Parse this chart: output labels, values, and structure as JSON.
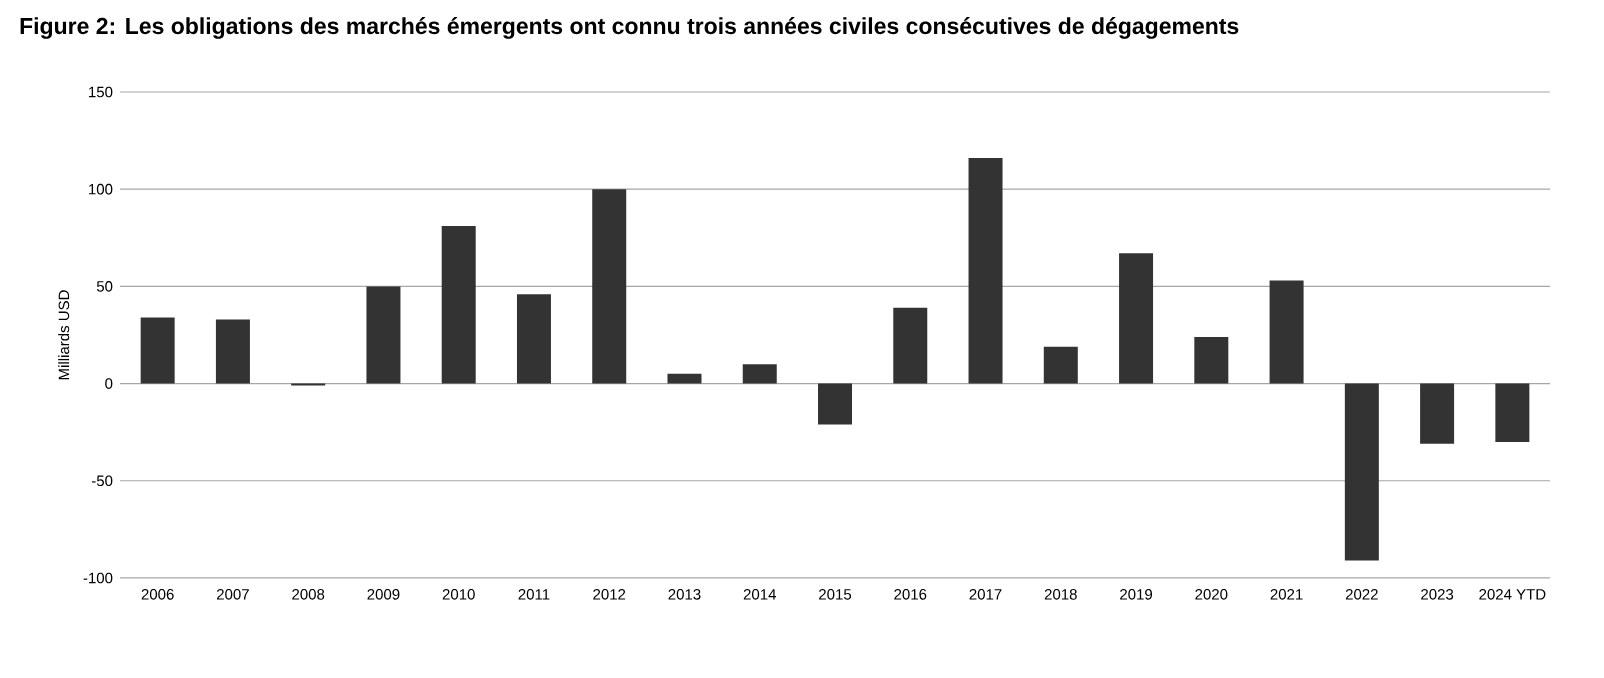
{
  "chart_data": {
    "type": "bar",
    "title": "Figure 2: Les obligations des marchés émergents ont connu trois années civiles consécutives de dégagements",
    "ylabel": "Milliards USD",
    "categories": [
      "2006",
      "2007",
      "2008",
      "2009",
      "2010",
      "2011",
      "2012",
      "2013",
      "2014",
      "2015",
      "2016",
      "2017",
      "2018",
      "2019",
      "2020",
      "2021",
      "2022",
      "2023",
      "2024 YTD"
    ],
    "values": [
      34,
      33,
      -1,
      50,
      81,
      46,
      100,
      5,
      10,
      -21,
      39,
      116,
      19,
      67,
      24,
      53,
      -91,
      -31,
      -30
    ],
    "color": "#333333",
    "ylim": [
      -100,
      150
    ],
    "yticks": [
      -100,
      -50,
      0,
      50,
      100,
      150
    ],
    "grid": "y"
  }
}
